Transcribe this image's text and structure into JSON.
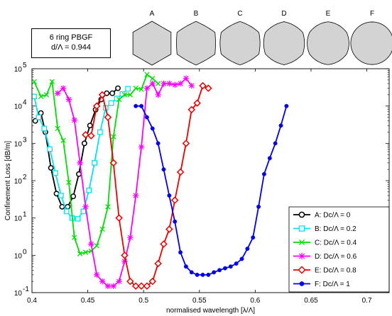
{
  "info": {
    "line1": "6 ring PBGF",
    "line2": "d/Λ = 0.944"
  },
  "shapes": [
    {
      "label": "A",
      "roundness": 0.0
    },
    {
      "label": "B",
      "roundness": 0.2
    },
    {
      "label": "C",
      "roundness": 0.4
    },
    {
      "label": "D",
      "roundness": 0.6
    },
    {
      "label": "E",
      "roundness": 0.8
    },
    {
      "label": "F",
      "roundness": 1.0
    }
  ],
  "shape_fill": "#d3d3d3",
  "chart_data": {
    "type": "line",
    "title": "",
    "xlabel": "normalised wavelength [λ/Λ]",
    "ylabel": "Confinement Loss [dB/m]",
    "xlim": [
      0.4,
      0.72
    ],
    "ylim": [
      0.1,
      100000
    ],
    "yscale": "log",
    "grid": false,
    "legend_position": "bottom-right",
    "x_ticks": [
      0.4,
      0.45,
      0.5,
      0.55,
      0.6,
      0.65,
      0.7
    ],
    "x_tick_labels": [
      "0.4",
      "0.45",
      "0.5",
      "0.55",
      "0.6",
      "0.65",
      "0.7"
    ],
    "y_ticks": [
      0.1,
      1,
      10,
      100,
      1000,
      10000,
      100000
    ],
    "y_tick_mantissa": "10",
    "y_tick_exponents": [
      "-1",
      "0",
      "1",
      "2",
      "3",
      "4",
      "5"
    ],
    "series": [
      {
        "name": "A: Dc/Λ = 0",
        "color": "#000000",
        "marker": "circle",
        "points": [
          [
            0.403,
            4000
          ],
          [
            0.408,
            6500
          ],
          [
            0.412,
            2000
          ],
          [
            0.417,
            220
          ],
          [
            0.422,
            45
          ],
          [
            0.427,
            20
          ],
          [
            0.432,
            20
          ],
          [
            0.437,
            38
          ],
          [
            0.442,
            150
          ],
          [
            0.447,
            1000
          ],
          [
            0.452,
            3000
          ],
          [
            0.457,
            8000
          ],
          [
            0.462,
            15000
          ],
          [
            0.467,
            22000
          ],
          [
            0.472,
            22000
          ],
          [
            0.477,
            30000
          ]
        ]
      },
      {
        "name": "B: Dc/Λ = 0.2",
        "color": "#00e5ee",
        "marker": "square",
        "points": [
          [
            0.402,
            18000
          ],
          [
            0.406,
            5000
          ],
          [
            0.411,
            2500
          ],
          [
            0.416,
            700
          ],
          [
            0.421,
            160
          ],
          [
            0.426,
            40
          ],
          [
            0.431,
            15
          ],
          [
            0.436,
            10
          ],
          [
            0.441,
            9.5
          ],
          [
            0.446,
            15
          ],
          [
            0.451,
            55
          ],
          [
            0.456,
            300
          ],
          [
            0.461,
            2000
          ],
          [
            0.466,
            9000
          ],
          [
            0.471,
            12000
          ],
          [
            0.476,
            16000
          ],
          [
            0.481,
            21000
          ],
          [
            0.486,
            29000
          ]
        ]
      },
      {
        "name": "C: Dc/Λ = 0.4",
        "color": "#00e000",
        "marker": "x",
        "points": [
          [
            0.402,
            45000
          ],
          [
            0.408,
            18000
          ],
          [
            0.413,
            20000
          ],
          [
            0.418,
            45000
          ],
          [
            0.423,
            2500
          ],
          [
            0.428,
            1200
          ],
          [
            0.433,
            90
          ],
          [
            0.438,
            3
          ],
          [
            0.443,
            1.1
          ],
          [
            0.448,
            1.2
          ],
          [
            0.453,
            1.3
          ],
          [
            0.458,
            1.8
          ],
          [
            0.463,
            5
          ],
          [
            0.468,
            20
          ],
          [
            0.473,
            1500
          ],
          [
            0.478,
            15000
          ],
          [
            0.483,
            20000
          ],
          [
            0.488,
            20000
          ],
          [
            0.493,
            30000
          ],
          [
            0.498,
            28000
          ],
          [
            0.503,
            70000
          ],
          [
            0.508,
            55000
          ],
          [
            0.513,
            40000
          ]
        ]
      },
      {
        "name": "D: Dc/Λ = 0.6",
        "color": "#ff00ff",
        "marker": "star",
        "points": [
          [
            0.423,
            22000
          ],
          [
            0.428,
            30000
          ],
          [
            0.433,
            15000
          ],
          [
            0.438,
            4200
          ],
          [
            0.443,
            300
          ],
          [
            0.448,
            20
          ],
          [
            0.453,
            2
          ],
          [
            0.458,
            0.3
          ],
          [
            0.463,
            0.2
          ],
          [
            0.468,
            0.15
          ],
          [
            0.473,
            0.15
          ],
          [
            0.478,
            0.2
          ],
          [
            0.483,
            0.7
          ],
          [
            0.488,
            3
          ],
          [
            0.493,
            40
          ],
          [
            0.498,
            800
          ],
          [
            0.503,
            30000
          ],
          [
            0.508,
            40000
          ],
          [
            0.513,
            20000
          ],
          [
            0.518,
            40000
          ],
          [
            0.523,
            40000
          ],
          [
            0.528,
            37000
          ],
          [
            0.533,
            40000
          ],
          [
            0.538,
            55000
          ],
          [
            0.543,
            35000
          ]
        ]
      },
      {
        "name": "E: Dc/Λ = 0.8",
        "color": "#ee0000",
        "marker": "diamond",
        "points": [
          [
            0.448,
            1700
          ],
          [
            0.453,
            1600
          ],
          [
            0.458,
            10000
          ],
          [
            0.463,
            20000
          ],
          [
            0.468,
            5000
          ],
          [
            0.473,
            300
          ],
          [
            0.478,
            10
          ],
          [
            0.483,
            1
          ],
          [
            0.488,
            0.2
          ],
          [
            0.493,
            0.15
          ],
          [
            0.498,
            0.15
          ],
          [
            0.503,
            0.15
          ],
          [
            0.508,
            0.2
          ],
          [
            0.513,
            0.6
          ],
          [
            0.518,
            2
          ],
          [
            0.523,
            5
          ],
          [
            0.528,
            30
          ],
          [
            0.533,
            170
          ],
          [
            0.538,
            1000
          ],
          [
            0.543,
            8000
          ],
          [
            0.548,
            12000
          ],
          [
            0.553,
            35000
          ],
          [
            0.558,
            30000
          ]
        ]
      },
      {
        "name": "F: Dc/Λ = 1",
        "color": "#0000ee",
        "marker": "dot",
        "points": [
          [
            0.493,
            10000
          ],
          [
            0.498,
            10000
          ],
          [
            0.503,
            5000
          ],
          [
            0.508,
            2500
          ],
          [
            0.513,
            1000
          ],
          [
            0.518,
            200
          ],
          [
            0.523,
            40
          ],
          [
            0.528,
            8
          ],
          [
            0.533,
            1.2
          ],
          [
            0.538,
            0.5
          ],
          [
            0.543,
            0.35
          ],
          [
            0.548,
            0.3
          ],
          [
            0.553,
            0.3
          ],
          [
            0.558,
            0.3
          ],
          [
            0.563,
            0.35
          ],
          [
            0.568,
            0.4
          ],
          [
            0.573,
            0.45
          ],
          [
            0.578,
            0.5
          ],
          [
            0.583,
            0.6
          ],
          [
            0.588,
            0.8
          ],
          [
            0.593,
            1.5
          ],
          [
            0.598,
            3
          ],
          [
            0.603,
            20
          ],
          [
            0.608,
            150
          ],
          [
            0.613,
            400
          ],
          [
            0.618,
            1000
          ],
          [
            0.623,
            3000
          ],
          [
            0.628,
            10000
          ]
        ]
      }
    ]
  }
}
